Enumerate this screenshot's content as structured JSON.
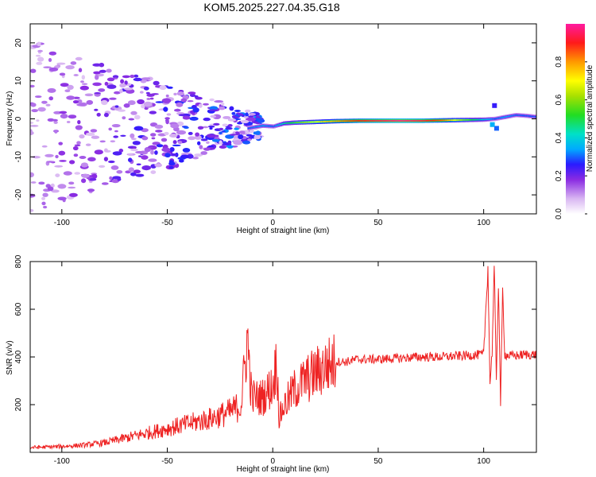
{
  "title": "KOM5.2025.227.04.35.G18",
  "chart_data": [
    {
      "type": "heatmap",
      "xlabel": "Height of straight line (km)",
      "ylabel": "Frequency (Hz)",
      "xlim": [
        -115,
        125
      ],
      "ylim": [
        -25,
        25
      ],
      "xticks": [
        -100,
        -50,
        0,
        50,
        100
      ],
      "yticks": [
        -20,
        -10,
        0,
        10,
        20
      ],
      "colorbar": {
        "label": "Normalized spectral amplitude",
        "range": [
          0.0,
          1.0
        ],
        "ticks": [
          0.0,
          0.2,
          0.4,
          0.6,
          0.8
        ]
      },
      "ridge": {
        "x": [
          -12,
          -5,
          0,
          5,
          10,
          20,
          30,
          40,
          50,
          60,
          70,
          80,
          90,
          100,
          105,
          110,
          115,
          120,
          125
        ],
        "freq": [
          -2.5,
          -1.8,
          -2.0,
          -1.2,
          -1.0,
          -0.8,
          -0.6,
          -0.5,
          -0.5,
          -0.5,
          -0.5,
          -0.4,
          -0.3,
          -0.2,
          0.0,
          0.5,
          1.0,
          0.8,
          0.5
        ],
        "amplitude": [
          0.3,
          0.35,
          0.3,
          0.45,
          0.55,
          0.7,
          0.8,
          0.9,
          0.95,
          1.0,
          0.95,
          0.85,
          0.6,
          0.4,
          0.3,
          0.35,
          0.3,
          0.3,
          0.3
        ]
      }
    },
    {
      "type": "line",
      "xlabel": "Height of straight line (km)",
      "ylabel": "SNR (v/v)",
      "xlim": [
        -115,
        125
      ],
      "ylim": [
        0,
        800
      ],
      "xticks": [
        -100,
        -50,
        0,
        50,
        100
      ],
      "yticks": [
        200,
        400,
        600,
        800
      ],
      "series": [
        {
          "name": "SNR",
          "x": [
            -115,
            -100,
            -90,
            -80,
            -70,
            -60,
            -50,
            -40,
            -30,
            -20,
            -15,
            -12,
            -10,
            -5,
            0,
            2,
            3,
            5,
            10,
            15,
            20,
            25,
            30,
            35,
            40,
            50,
            60,
            70,
            80,
            90,
            100,
            102,
            103,
            104,
            105,
            106,
            107,
            108,
            109,
            110,
            112,
            115,
            120,
            125
          ],
          "y": [
            20,
            25,
            30,
            40,
            60,
            80,
            100,
            120,
            140,
            170,
            200,
            480,
            230,
            230,
            280,
            390,
            140,
            190,
            260,
            300,
            330,
            360,
            380,
            380,
            390,
            390,
            395,
            400,
            400,
            405,
            410,
            780,
            290,
            420,
            780,
            300,
            720,
            200,
            680,
            410,
            405,
            405,
            410,
            410
          ]
        }
      ]
    }
  ]
}
